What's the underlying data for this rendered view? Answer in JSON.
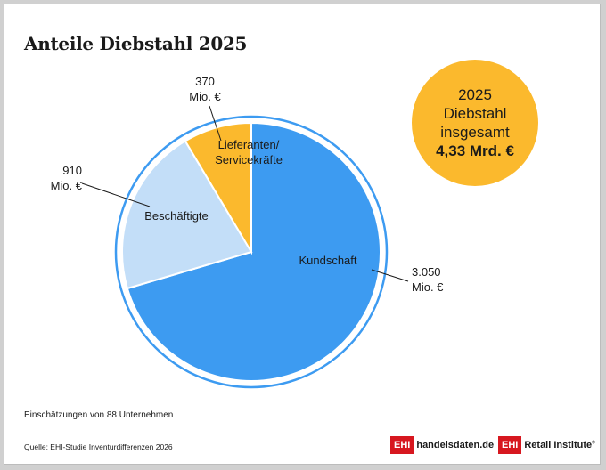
{
  "title": "Anteile Diebstahl 2025",
  "badge": {
    "year": "2025",
    "line1": "Diebstahl",
    "line2": "insgesamt",
    "total": "4,33 Mrd. €"
  },
  "chart_data": {
    "type": "pie",
    "title": "Anteile Diebstahl 2025",
    "unit": "Mio. €",
    "slices": [
      {
        "label": "Kundschaft",
        "value": 3050,
        "value_text": "3.050",
        "unit": "Mio. €",
        "color": "#3d9bf1"
      },
      {
        "label": "Beschäftigte",
        "value": 910,
        "value_text": "910",
        "unit": "Mio. €",
        "color": "#c3def8"
      },
      {
        "label": "Lieferanten/\nServicekräfte",
        "value": 370,
        "value_text": "370",
        "unit": "Mio. €",
        "color": "#fbb92d"
      }
    ]
  },
  "footer": {
    "note": "Einschätzungen von 88 Unternehmen",
    "source": "Quelle: EHI-Studie Inventurdifferenzen 2026",
    "logo1_mark": "EHI",
    "logo1_text": "handelsdaten.de",
    "logo2_mark": "EHI",
    "logo2_text": "Retail Institute",
    "logo2_reg": "®"
  },
  "colors": {
    "ring": "#3d9bf1",
    "outline": "#ffffff",
    "leader": "#1a1a1a"
  }
}
